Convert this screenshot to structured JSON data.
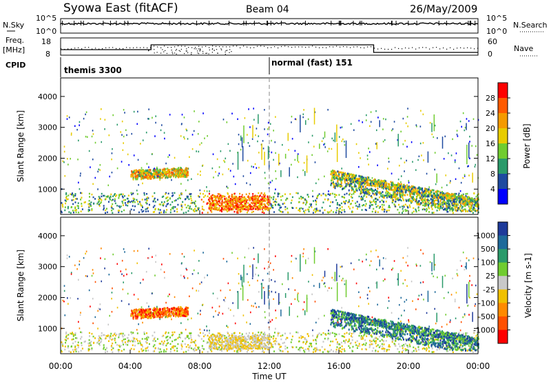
{
  "header": {
    "station": "Syowa East (fitACF)",
    "beam": "Beam 04",
    "date": "26/May/2009"
  },
  "panels": {
    "nsky": {
      "label": "N.Sky",
      "left_ticks": [
        "10^5",
        "10^0"
      ],
      "right_label": "N.Search",
      "right_ticks": [
        "10^5",
        "10^0"
      ]
    },
    "freq": {
      "label_top": "Freq.",
      "label_unit": "[MHz]",
      "left_ticks": [
        "18",
        "8"
      ],
      "right_label": "Nave",
      "right_ticks": [
        "60",
        "0"
      ]
    },
    "cpid": {
      "label": "CPID",
      "segments": [
        {
          "name": "themis 3300",
          "start_ut": "00:00"
        },
        {
          "name": "normal (fast) 151",
          "start_ut": "12:00"
        }
      ]
    }
  },
  "chart_data": [
    {
      "type": "heatmap",
      "title": "",
      "ylabel": "Slant Range [km]",
      "xlabel": "Time UT",
      "ylim": [
        180,
        4600
      ],
      "y_ticks": [
        "4000",
        "3000",
        "2000",
        "1000"
      ],
      "colorbar_label": "Power [dB]",
      "colorbar_ticks": [
        "28",
        "24",
        "20",
        "16",
        "12",
        "8",
        "4"
      ],
      "colorbar_colors": [
        "#ff0000",
        "#ff5a00",
        "#f59a00",
        "#e8cc00",
        "#70cc30",
        "#2a9a6a",
        "#1e4aa0",
        "#0000ff"
      ]
    },
    {
      "type": "heatmap",
      "title": "",
      "ylabel": "Slant Range [km]",
      "xlabel": "Time UT",
      "ylim": [
        180,
        4600
      ],
      "y_ticks": [
        "4000",
        "3000",
        "2000",
        "1000"
      ],
      "colorbar_label": "Velocity [m s-1]",
      "colorbar_ticks": [
        "1000",
        "500",
        "100",
        "25",
        "-25",
        "-100",
        "-500",
        "-1000"
      ],
      "colorbar_colors": [
        "#1e3a9a",
        "#1e6a9a",
        "#2a9a6a",
        "#70cc30",
        "#c8c8c8",
        "#f0c000",
        "#ff8a00",
        "#ff5000",
        "#ff0000"
      ]
    }
  ],
  "x_ticks": [
    "00:00",
    "04:00",
    "08:00",
    "12:00",
    "16:00",
    "20:00",
    "00:00"
  ]
}
